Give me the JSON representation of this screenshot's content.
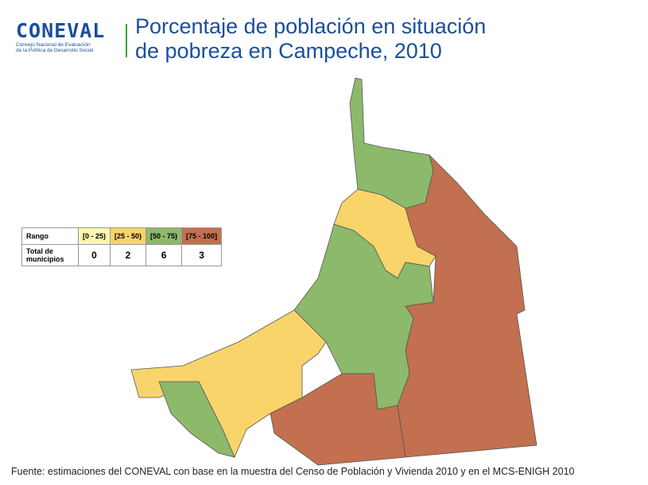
{
  "logo": {
    "name": "CONEVAL",
    "subtitle": [
      "Consejo Nacional de Evaluación",
      "de la Política de Desarrollo Social"
    ]
  },
  "title": [
    "Porcentaje de población en situación",
    "de pobreza en Campeche, 2010"
  ],
  "table": {
    "header": [
      "Rango",
      "[0 - 25)",
      "[25 - 50)",
      "[50 - 75)",
      "[75 - 100]"
    ],
    "rows": [
      [
        "Total de municipios",
        "0",
        "2",
        "6",
        "3"
      ]
    ],
    "colors": [
      "#fdf6b3",
      "#f9d46b",
      "#8db96b",
      "#c2704f"
    ]
  },
  "footer": "Fuente: estimaciones del CONEVAL con base en la muestra del Censo de Población y Vivienda 2010 y en el MCS-ENIGH 2010"
}
